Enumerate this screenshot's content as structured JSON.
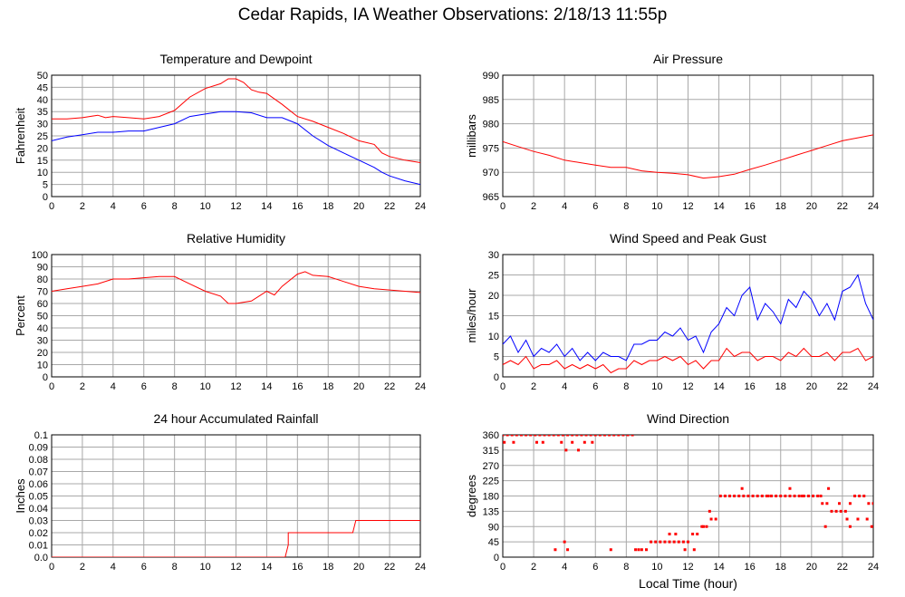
{
  "page_title": "Cedar Rapids, IA Weather Observations: 2/18/13 11:55p",
  "chart_data": [
    {
      "type": "line",
      "title": "Temperature and Dewpoint",
      "ylabel": "Fahrenheit",
      "xlabel": "",
      "xlim": [
        0,
        24
      ],
      "ylim": [
        0,
        50
      ],
      "x_ticks": [
        "0",
        "2",
        "4",
        "6",
        "8",
        "10",
        "12",
        "14",
        "16",
        "18",
        "20",
        "22",
        "24"
      ],
      "y_ticks": [
        "0",
        "5",
        "10",
        "15",
        "20",
        "25",
        "30",
        "35",
        "40",
        "45",
        "50"
      ],
      "grid": true,
      "series": [
        {
          "color": "#ff0000",
          "x": [
            0,
            1,
            2,
            3,
            3.5,
            4,
            5,
            6,
            7,
            8,
            9,
            10,
            11,
            11.5,
            12,
            12.5,
            13,
            13.5,
            14,
            15,
            16,
            17,
            18,
            19,
            20,
            21,
            21.5,
            22,
            23,
            24
          ],
          "y": [
            32,
            32,
            32.5,
            33.5,
            32.5,
            33,
            32.5,
            32,
            33,
            35.5,
            41,
            44.5,
            46.5,
            48.5,
            48.5,
            47,
            44,
            43,
            42.5,
            38,
            33,
            31,
            28.5,
            26,
            23,
            21.5,
            18,
            16.5,
            15,
            14
          ]
        },
        {
          "color": "#0000ff",
          "x": [
            0,
            1,
            2,
            3,
            4,
            5,
            6,
            7,
            8,
            9,
            10,
            11,
            12,
            13,
            14,
            15,
            16,
            17,
            18,
            19,
            20,
            21,
            21.5,
            22,
            23,
            24
          ],
          "y": [
            23,
            24.5,
            25.5,
            26.5,
            26.5,
            27,
            27,
            28.5,
            30,
            33,
            34,
            35,
            35,
            34.5,
            32.5,
            32.5,
            30,
            25,
            21,
            18,
            15,
            12,
            10,
            8.5,
            6.5,
            5
          ]
        }
      ]
    },
    {
      "type": "line",
      "title": "Air Pressure",
      "ylabel": "millibars",
      "xlabel": "",
      "xlim": [
        0,
        24
      ],
      "ylim": [
        965,
        990
      ],
      "x_ticks": [
        "0",
        "2",
        "4",
        "6",
        "8",
        "10",
        "12",
        "14",
        "16",
        "18",
        "20",
        "22",
        "24"
      ],
      "y_ticks": [
        "965",
        "970",
        "975",
        "980",
        "985",
        "990"
      ],
      "grid": true,
      "series": [
        {
          "color": "#ff0000",
          "x": [
            0,
            1,
            2,
            3,
            4,
            5,
            6,
            7,
            8,
            9,
            10,
            11,
            12,
            13,
            14,
            15,
            16,
            17,
            18,
            19,
            20,
            21,
            22,
            23,
            24
          ],
          "y": [
            976.3,
            975.3,
            974.3,
            973.5,
            972.5,
            972,
            971.5,
            971,
            971,
            970.3,
            970,
            969.8,
            969.5,
            968.8,
            969.1,
            969.6,
            970.6,
            971.5,
            972.5,
            973.5,
            974.5,
            975.5,
            976.5,
            977.1,
            977.7
          ]
        }
      ]
    },
    {
      "type": "line",
      "title": "Relative Humidity",
      "ylabel": "Percent",
      "xlabel": "",
      "xlim": [
        0,
        24
      ],
      "ylim": [
        0,
        100
      ],
      "x_ticks": [
        "0",
        "2",
        "4",
        "6",
        "8",
        "10",
        "12",
        "14",
        "16",
        "18",
        "20",
        "22",
        "24"
      ],
      "y_ticks": [
        "0",
        "10",
        "20",
        "30",
        "40",
        "50",
        "60",
        "70",
        "80",
        "90",
        "100"
      ],
      "grid": true,
      "series": [
        {
          "color": "#ff0000",
          "x": [
            0,
            1,
            2,
            3,
            4,
            5,
            6,
            7,
            8,
            9,
            10,
            11,
            11.5,
            12,
            13,
            14,
            14.5,
            15,
            16,
            16.5,
            17,
            18,
            19,
            20,
            21,
            22,
            23,
            24
          ],
          "y": [
            70,
            72,
            74,
            76,
            80,
            80,
            81,
            82,
            82,
            76,
            70,
            66,
            60,
            60,
            62,
            70,
            67,
            74,
            84,
            86,
            83,
            82,
            78,
            74,
            72,
            71,
            70,
            69
          ]
        }
      ]
    },
    {
      "type": "line",
      "title": "Wind Speed and Peak Gust",
      "ylabel": "miles/hour",
      "xlabel": "",
      "xlim": [
        0,
        24
      ],
      "ylim": [
        0,
        30
      ],
      "x_ticks": [
        "0",
        "2",
        "4",
        "6",
        "8",
        "10",
        "12",
        "14",
        "16",
        "18",
        "20",
        "22",
        "24"
      ],
      "y_ticks": [
        "0",
        "5",
        "10",
        "15",
        "20",
        "25",
        "30"
      ],
      "grid": true,
      "series": [
        {
          "color": "#0000ff",
          "x": [
            0,
            0.5,
            1,
            1.5,
            2,
            2.5,
            3,
            3.5,
            4,
            4.5,
            5,
            5.5,
            6,
            6.5,
            7,
            7.5,
            8,
            8.5,
            9,
            9.5,
            10,
            10.5,
            11,
            11.5,
            12,
            12.5,
            13,
            13.5,
            14,
            14.5,
            15,
            15.5,
            16,
            16.5,
            17,
            17.5,
            18,
            18.5,
            19,
            19.5,
            20,
            20.5,
            21,
            21.5,
            22,
            22.5,
            23,
            23.5,
            24
          ],
          "y": [
            8,
            10,
            6,
            9,
            5,
            7,
            6,
            8,
            5,
            7,
            4,
            6,
            4,
            6,
            5,
            5,
            4,
            8,
            8,
            9,
            9,
            11,
            10,
            12,
            9,
            10,
            6,
            11,
            13,
            17,
            15,
            20,
            22,
            14,
            18,
            16,
            13,
            19,
            17,
            21,
            19,
            15,
            18,
            14,
            21,
            22,
            25,
            18,
            14
          ]
        },
        {
          "color": "#ff0000",
          "x": [
            0,
            0.5,
            1,
            1.5,
            2,
            2.5,
            3,
            3.5,
            4,
            4.5,
            5,
            5.5,
            6,
            6.5,
            7,
            7.5,
            8,
            8.5,
            9,
            9.5,
            10,
            10.5,
            11,
            11.5,
            12,
            12.5,
            13,
            13.5,
            14,
            14.5,
            15,
            15.5,
            16,
            16.5,
            17,
            17.5,
            18,
            18.5,
            19,
            19.5,
            20,
            20.5,
            21,
            21.5,
            22,
            22.5,
            23,
            23.5,
            24
          ],
          "y": [
            3,
            4,
            3,
            5,
            2,
            3,
            3,
            4,
            2,
            3,
            2,
            3,
            2,
            3,
            1,
            2,
            2,
            4,
            3,
            4,
            4,
            5,
            4,
            5,
            3,
            4,
            2,
            4,
            4,
            7,
            5,
            6,
            6,
            4,
            5,
            5,
            4,
            6,
            5,
            7,
            5,
            5,
            6,
            4,
            6,
            6,
            7,
            4,
            5
          ]
        }
      ]
    },
    {
      "type": "line",
      "title": "24 hour Accumulated Rainfall",
      "ylabel": "Inches",
      "xlabel": "",
      "xlim": [
        0,
        24
      ],
      "ylim": [
        0,
        0.1
      ],
      "x_ticks": [
        "0",
        "2",
        "4",
        "6",
        "8",
        "10",
        "12",
        "14",
        "16",
        "18",
        "20",
        "22",
        "24"
      ],
      "y_ticks": [
        "0.0",
        "0.01",
        "0.02",
        "0.03",
        "0.04",
        "0.05",
        "0.06",
        "0.07",
        "0.08",
        "0.09",
        "0.1"
      ],
      "grid": true,
      "series": [
        {
          "color": "#ff0000",
          "x": [
            0,
            15.2,
            15.4,
            15.4,
            19.6,
            19.8,
            24
          ],
          "y": [
            0,
            0,
            0.01,
            0.02,
            0.02,
            0.03,
            0.03
          ]
        }
      ]
    },
    {
      "type": "scatter",
      "title": "Wind Direction",
      "ylabel": "degrees",
      "xlabel": "Local Time (hour)",
      "xlim": [
        0,
        24
      ],
      "ylim": [
        0,
        360
      ],
      "x_ticks": [
        "0",
        "2",
        "4",
        "6",
        "8",
        "10",
        "12",
        "14",
        "16",
        "18",
        "20",
        "22",
        "24"
      ],
      "y_ticks": [
        "0",
        "45",
        "90",
        "135",
        "180",
        "225",
        "270",
        "315",
        "360"
      ],
      "grid": true,
      "series": [
        {
          "color": "#ff0000",
          "x": [
            0,
            0.3,
            0.6,
            0.9,
            1.2,
            1.5,
            1.8,
            2.1,
            2.4,
            2.7,
            3.0,
            3.3,
            3.6,
            3.9,
            4.2,
            4.5,
            4.8,
            5.1,
            5.4,
            5.7,
            6.0,
            6.3,
            6.6,
            6.9,
            7.2,
            7.5,
            7.8,
            8.1,
            8.4,
            0.1,
            0.7,
            2.2,
            2.6,
            3.8,
            4.1,
            4.5,
            4.9,
            5.3,
            5.8,
            3.4,
            4.0,
            4.2,
            7.0,
            8.6,
            8.8,
            9.0,
            9.3,
            9.6,
            9.9,
            10.2,
            10.5,
            10.8,
            11.1,
            11.4,
            11.7,
            12.0,
            12.3,
            12.6,
            12.9,
            13.2,
            13.5,
            13.8,
            14.1,
            14.4,
            14.7,
            15.0,
            15.3,
            15.6,
            15.9,
            16.2,
            16.5,
            16.8,
            17.1,
            17.4,
            17.7,
            18.0,
            18.3,
            18.6,
            18.9,
            19.2,
            19.5,
            19.8,
            20.1,
            20.4,
            20.7,
            21.0,
            21.3,
            21.6,
            21.9,
            22.2,
            22.5,
            22.8,
            23.1,
            23.4,
            23.7,
            24.0,
            10.8,
            11.2,
            11.8,
            12.4,
            13.0,
            13.4,
            15.5,
            17.2,
            18.6,
            19.4,
            20.6,
            21.1,
            21.8,
            22.3,
            23.0,
            23.6,
            20.9,
            22.5,
            23.9
          ],
          "y": [
            360,
            360,
            360,
            360,
            360,
            360,
            360,
            360,
            360,
            360,
            360,
            360,
            360,
            360,
            360,
            360,
            360,
            360,
            360,
            360,
            360,
            360,
            360,
            360,
            360,
            360,
            360,
            360,
            360,
            338,
            338,
            338,
            338,
            338,
            315,
            338,
            315,
            338,
            338,
            22,
            45,
            22,
            22,
            22,
            22,
            22,
            22,
            45,
            45,
            45,
            45,
            45,
            45,
            45,
            45,
            45,
            68,
            68,
            90,
            90,
            112,
            112,
            180,
            180,
            180,
            180,
            180,
            180,
            180,
            180,
            180,
            180,
            180,
            180,
            180,
            180,
            180,
            180,
            180,
            180,
            180,
            180,
            180,
            180,
            158,
            158,
            135,
            135,
            135,
            135,
            158,
            180,
            180,
            180,
            158,
            158,
            68,
            68,
            22,
            22,
            90,
            135,
            202,
            180,
            202,
            180,
            180,
            202,
            158,
            112,
            112,
            112,
            90,
            90,
            90
          ]
        }
      ]
    }
  ]
}
